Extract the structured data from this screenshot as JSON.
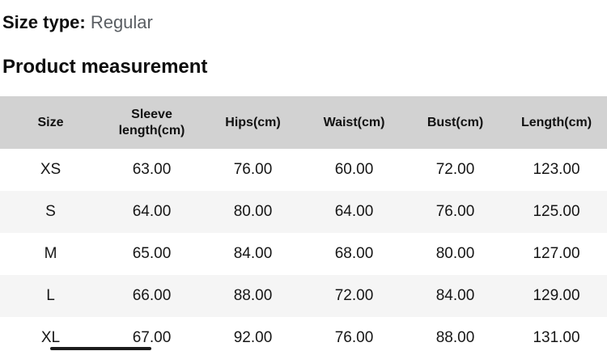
{
  "page": {
    "size_type_label": "Size type:",
    "size_type_value": "Regular",
    "section_title": "Product measurement"
  },
  "table": {
    "columns": [
      "Size",
      "Sleeve length(cm)",
      "Hips(cm)",
      "Waist(cm)",
      "Bust(cm)",
      "Length(cm)"
    ],
    "rows": [
      {
        "size": "XS",
        "values": [
          "63.00",
          "76.00",
          "60.00",
          "72.00",
          "123.00"
        ]
      },
      {
        "size": "S",
        "values": [
          "64.00",
          "80.00",
          "64.00",
          "76.00",
          "125.00"
        ]
      },
      {
        "size": "M",
        "values": [
          "65.00",
          "84.00",
          "68.00",
          "80.00",
          "127.00"
        ]
      },
      {
        "size": "L",
        "values": [
          "66.00",
          "88.00",
          "72.00",
          "84.00",
          "129.00"
        ]
      },
      {
        "size": "XL",
        "values": [
          "67.00",
          "92.00",
          "76.00",
          "88.00",
          "131.00"
        ]
      }
    ]
  },
  "scrollbar": {
    "orientation": "horizontal"
  },
  "colors": {
    "header_bg": "#d2d2d2",
    "row_alt_bg": "#f5f5f5",
    "muted_text": "#5a5e63",
    "scroll_thumb": "#1c1c1c"
  }
}
